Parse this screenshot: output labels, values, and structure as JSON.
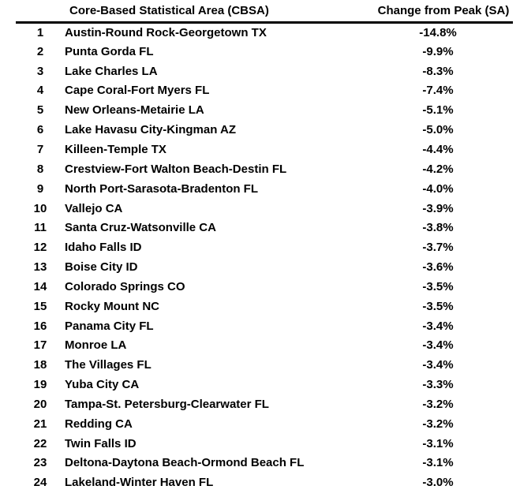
{
  "table": {
    "columns": {
      "rank": "",
      "cbsa": "Core-Based Statistical Area (CBSA)",
      "change": "Change from Peak (SA)"
    },
    "rows": [
      {
        "rank": "1",
        "cbsa": "Austin-Round Rock-Georgetown TX",
        "change": "-14.8%"
      },
      {
        "rank": "2",
        "cbsa": "Punta Gorda FL",
        "change": "-9.9%"
      },
      {
        "rank": "3",
        "cbsa": "Lake Charles LA",
        "change": "-8.3%"
      },
      {
        "rank": "4",
        "cbsa": "Cape Coral-Fort Myers FL",
        "change": "-7.4%"
      },
      {
        "rank": "5",
        "cbsa": "New Orleans-Metairie LA",
        "change": "-5.1%"
      },
      {
        "rank": "6",
        "cbsa": "Lake Havasu City-Kingman AZ",
        "change": "-5.0%"
      },
      {
        "rank": "7",
        "cbsa": "Killeen-Temple TX",
        "change": "-4.4%"
      },
      {
        "rank": "8",
        "cbsa": "Crestview-Fort Walton Beach-Destin FL",
        "change": "-4.2%"
      },
      {
        "rank": "9",
        "cbsa": "North Port-Sarasota-Bradenton FL",
        "change": "-4.0%"
      },
      {
        "rank": "10",
        "cbsa": "Vallejo CA",
        "change": "-3.9%"
      },
      {
        "rank": "11",
        "cbsa": "Santa Cruz-Watsonville CA",
        "change": "-3.8%"
      },
      {
        "rank": "12",
        "cbsa": "Idaho Falls ID",
        "change": "-3.7%"
      },
      {
        "rank": "13",
        "cbsa": "Boise City ID",
        "change": "-3.6%"
      },
      {
        "rank": "14",
        "cbsa": "Colorado Springs CO",
        "change": "-3.5%"
      },
      {
        "rank": "15",
        "cbsa": "Rocky Mount NC",
        "change": "-3.5%"
      },
      {
        "rank": "16",
        "cbsa": "Panama City FL",
        "change": "-3.4%"
      },
      {
        "rank": "17",
        "cbsa": "Monroe LA",
        "change": "-3.4%"
      },
      {
        "rank": "18",
        "cbsa": "The Villages FL",
        "change": "-3.4%"
      },
      {
        "rank": "19",
        "cbsa": "Yuba City CA",
        "change": "-3.3%"
      },
      {
        "rank": "20",
        "cbsa": "Tampa-St. Petersburg-Clearwater FL",
        "change": "-3.2%"
      },
      {
        "rank": "21",
        "cbsa": "Redding CA",
        "change": "-3.2%"
      },
      {
        "rank": "22",
        "cbsa": "Twin Falls ID",
        "change": "-3.1%"
      },
      {
        "rank": "23",
        "cbsa": "Deltona-Daytona Beach-Ormond Beach FL",
        "change": "-3.1%"
      },
      {
        "rank": "24",
        "cbsa": "Lakeland-Winter Haven FL",
        "change": "-3.0%"
      }
    ]
  },
  "colors": {
    "text": "#000000",
    "background": "#ffffff",
    "header_rule": "#000000"
  }
}
